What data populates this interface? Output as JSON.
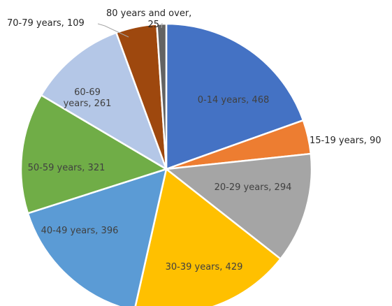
{
  "chart_data": {
    "type": "pie",
    "title": "",
    "slices": [
      {
        "label": "0-14 years, 468",
        "value": 468,
        "color": "#4472c4"
      },
      {
        "label": "15-19 years, 90",
        "value": 90,
        "color": "#ed7d31"
      },
      {
        "label": "20-29 years, 294",
        "value": 294,
        "color": "#a5a5a5"
      },
      {
        "label": "30-39 years, 429",
        "value": 429,
        "color": "#ffc000"
      },
      {
        "label": "40-49 years, 396",
        "value": 396,
        "color": "#5b9bd5"
      },
      {
        "label": "50-59 years, 321",
        "value": 321,
        "color": "#70ad47"
      },
      {
        "label": "60-69 years, 261",
        "value": 261,
        "color": "#b4c7e7"
      },
      {
        "label": "70-79 years, 109",
        "value": 109,
        "color": "#9e480e"
      },
      {
        "label": "80 years and over, 25",
        "value": 25,
        "color": "#636363"
      }
    ],
    "legend": "none",
    "data_labels": "on slices / outside with leader lines"
  }
}
